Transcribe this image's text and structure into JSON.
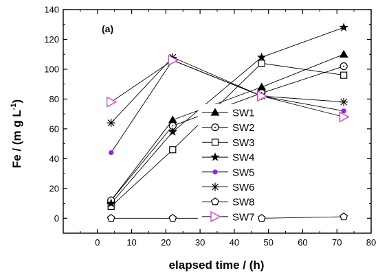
{
  "chart_data": {
    "type": "line",
    "panel_label": "(a)",
    "xlabel": "elapsed time / (h)",
    "ylabel": "Fe / (m g L",
    "ylabel_superscript": "-1",
    "ylabel_close": ")",
    "xlim": [
      -10,
      80
    ],
    "ylim": [
      -10,
      140
    ],
    "xticks": [
      0,
      10,
      20,
      30,
      40,
      50,
      60,
      70,
      80
    ],
    "yticks": [
      0,
      20,
      40,
      60,
      80,
      100,
      120,
      140
    ],
    "x": [
      4,
      22,
      48,
      72
    ],
    "grid": false,
    "legend_position": "center",
    "series": [
      {
        "name": "SW1",
        "marker": "triangle-up-filled",
        "values": [
          12,
          66,
          88,
          110
        ]
      },
      {
        "name": "SW2",
        "marker": "circle-dot",
        "values": [
          12,
          62,
          84,
          102
        ]
      },
      {
        "name": "SW3",
        "marker": "square-open",
        "values": [
          8,
          46,
          104,
          96
        ]
      },
      {
        "name": "SW4",
        "marker": "star-filled",
        "values": [
          10,
          58,
          108,
          128
        ]
      },
      {
        "name": "SW5",
        "marker": "circle-small-filled",
        "color": "#8a2be2",
        "values": [
          44,
          106,
          82,
          72
        ]
      },
      {
        "name": "SW6",
        "marker": "asterisk",
        "values": [
          64,
          108,
          82,
          78
        ]
      },
      {
        "name": "SW8",
        "marker": "pentagon-open",
        "values": [
          0,
          0,
          0,
          1
        ]
      },
      {
        "name": "SW7",
        "marker": "triangle-right-open",
        "color": "#e040e0",
        "values": [
          78,
          106,
          82,
          68
        ]
      }
    ]
  }
}
